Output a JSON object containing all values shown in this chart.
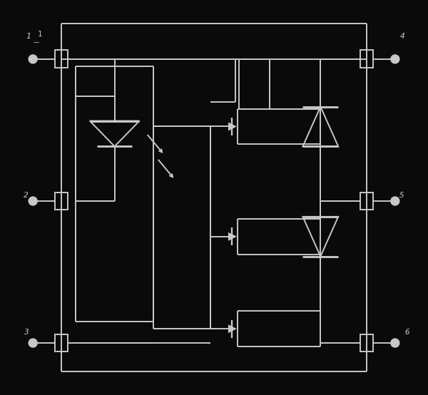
{
  "bg_color": "#0a0a0a",
  "line_color": "#c8c8c8",
  "lw": 1.4,
  "fig_w": 6.0,
  "fig_h": 5.54,
  "dpi": 100,
  "xlim": [
    0,
    60
  ],
  "ylim": [
    0,
    55
  ]
}
